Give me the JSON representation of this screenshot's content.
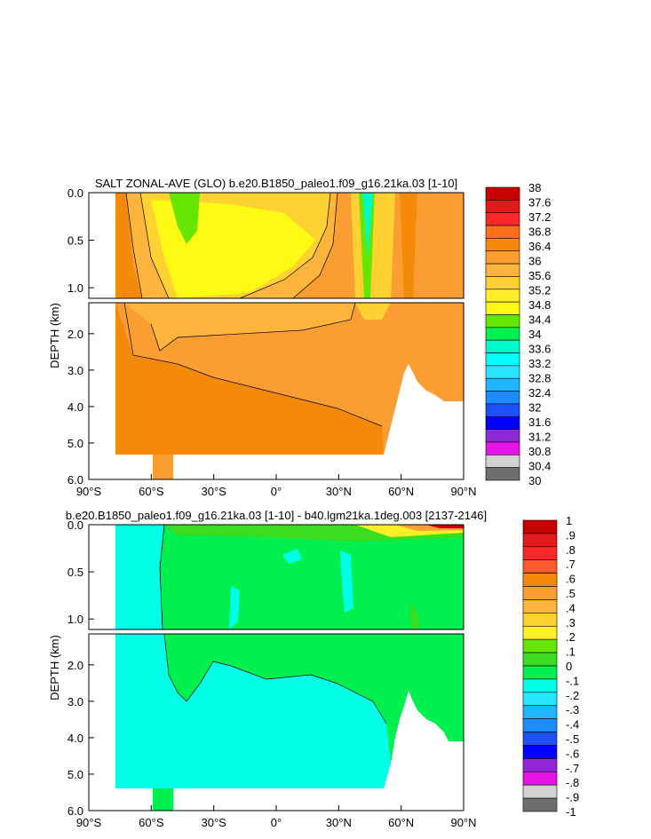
{
  "chart_data": [
    {
      "type": "heatmap",
      "title": "SALT ZONAL-AVE (GLO) b.e20.B1850_paleo1.f09_g16.21ka.03 [1-10]",
      "ylabel": "DEPTH (km)",
      "x_ticks": [
        "90°S",
        "60°S",
        "30°S",
        "0°",
        "30°N",
        "60°N",
        "90°N"
      ],
      "y_ticks_upper": [
        "0.0",
        "0.5",
        "1.0"
      ],
      "y_ticks_lower": [
        "2.0",
        "3.0",
        "4.0",
        "5.0",
        "6.0"
      ],
      "colorbar_labels": [
        "38",
        "37.6",
        "37.2",
        "36.8",
        "36.4",
        "36",
        "35.6",
        "35.2",
        "34.8",
        "34.4",
        "34",
        "33.6",
        "33.2",
        "32.8",
        "32.4",
        "32",
        "31.6",
        "31.2",
        "30.8",
        "30.4",
        "30"
      ],
      "colorbar_colors": [
        "#c80000",
        "#e41a1a",
        "#ff2828",
        "#ff6e1e",
        "#f58a0a",
        "#fa9d32",
        "#ffb43c",
        "#ffd232",
        "#ffee28",
        "#fffa14",
        "#64e600",
        "#00f050",
        "#00fac8",
        "#00ffff",
        "#28e6ff",
        "#1eb4ff",
        "#1e8cff",
        "#1e50ff",
        "#0000ff",
        "#9128d7",
        "#e614e6",
        "#d2d2d2",
        "#6e6e6e"
      ]
    },
    {
      "type": "heatmap",
      "title": "b.e20.B1850_paleo1.f09_g16.21ka.03 [1-10] - b40.lgm21ka.1deg.003 [2137-2146]",
      "ylabel": "DEPTH (km)",
      "x_ticks": [
        "90°S",
        "60°S",
        "30°S",
        "0°",
        "30°N",
        "60°N",
        "90°N"
      ],
      "y_ticks_upper": [
        "0.0",
        "0.5",
        "1.0"
      ],
      "y_ticks_lower": [
        "2.0",
        "3.0",
        "4.0",
        "5.0",
        "6.0"
      ],
      "colorbar_labels": [
        "1",
        ".9",
        ".8",
        ".7",
        ".6",
        ".5",
        ".4",
        ".3",
        ".2",
        ".1",
        "0",
        "-.1",
        "-.2",
        "-.3",
        "-.4",
        "-.5",
        "-.6",
        "-.7",
        "-.8",
        "-.9",
        "-1"
      ],
      "colorbar_colors": [
        "#c80000",
        "#e41a1a",
        "#ff2828",
        "#ff5a28",
        "#f58a0a",
        "#fa9d32",
        "#ffb43c",
        "#ffd232",
        "#ffee28",
        "#64e600",
        "#3cdc1e",
        "#00f050",
        "#00ffe6",
        "#28e6ff",
        "#1eb4ff",
        "#1e8cff",
        "#1e50ff",
        "#0000ff",
        "#9128d7",
        "#e614e6",
        "#d2d2d2",
        "#6e6e6e"
      ]
    }
  ]
}
